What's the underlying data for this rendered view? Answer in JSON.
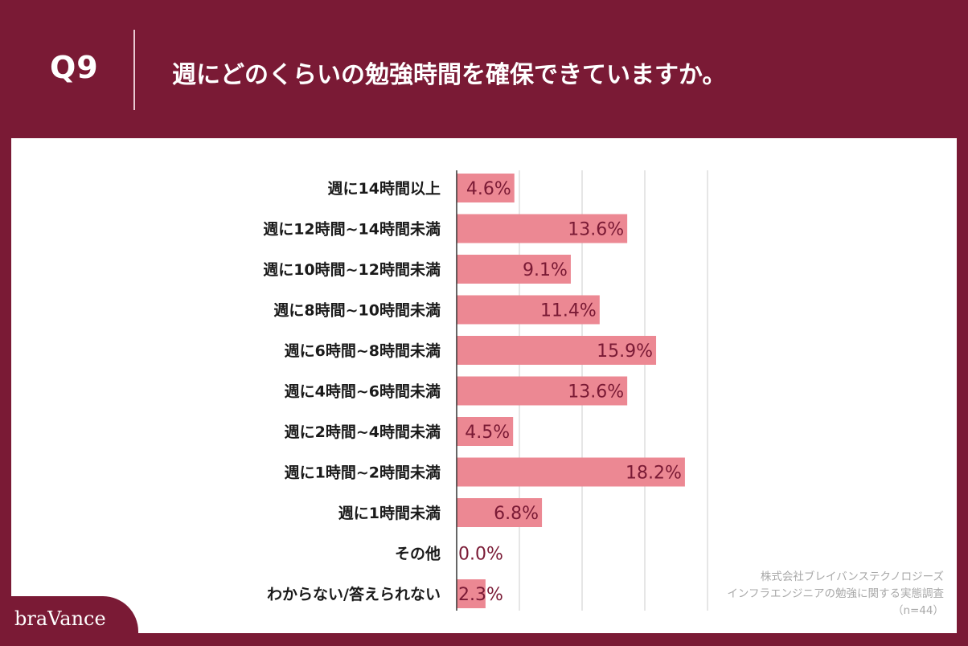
{
  "header": {
    "q_label": "Q9",
    "question": "週にどのくらいの勉強時間を確保できていますか。"
  },
  "brand": "braVance",
  "source": {
    "line1": "株式会社ブレイバンステクノロジーズ",
    "line2": "インフラエンジニアの勉強に関する実態調査",
    "line3": "（n=44）"
  },
  "colors": {
    "background": "#7a1a35",
    "bar": "#ec8893",
    "value_label": "#7a1a35",
    "category_label": "#1a1a1a",
    "gridline": "#cccccc"
  },
  "chart_data": {
    "type": "bar",
    "orientation": "horizontal",
    "categories": [
      "週に14時間以上",
      "週に12時間~14時間未満",
      "週に10時間~12時間未満",
      "週に8時間~10時間未満",
      "週に6時間~8時間未満",
      "週に4時間~6時間未満",
      "週に2時間~4時間未満",
      "週に1時間~2時間未満",
      "週に1時間未満",
      "その他",
      "わからない/答えられない"
    ],
    "values": [
      4.6,
      13.6,
      9.1,
      11.4,
      15.9,
      13.6,
      4.5,
      18.2,
      6.8,
      0.0,
      2.3
    ],
    "value_labels": [
      "4.6%",
      "13.6%",
      "9.1%",
      "11.4%",
      "15.9%",
      "13.6%",
      "4.5%",
      "18.2%",
      "6.8%",
      "0.0%",
      "2.3%"
    ],
    "unit": "%",
    "xlim": [
      0,
      40
    ],
    "grid_step": 5,
    "grid": true,
    "legend": "none"
  }
}
